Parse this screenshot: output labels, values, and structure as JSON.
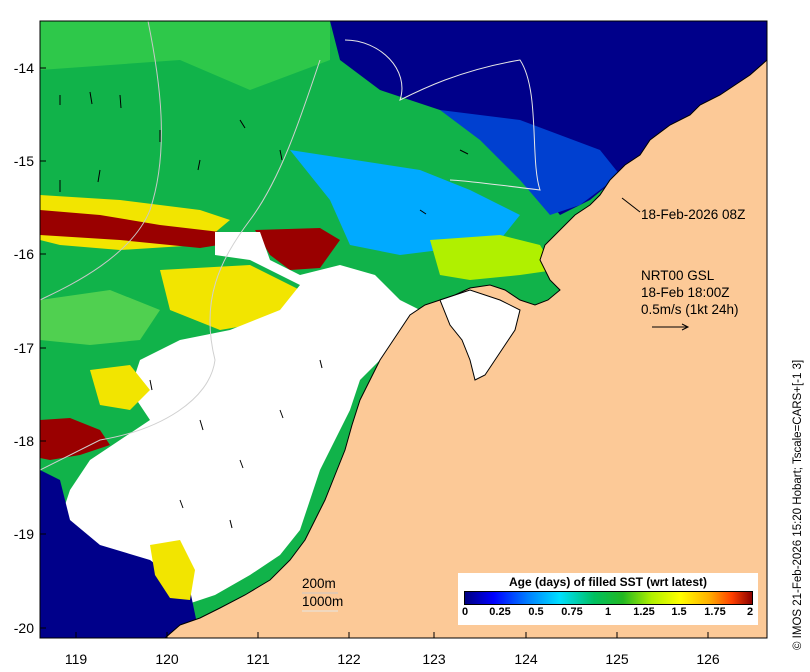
{
  "map": {
    "y_ticks": [
      "-14",
      "-15",
      "-16",
      "-17",
      "-18",
      "-19",
      "-20"
    ],
    "x_ticks": [
      "119",
      "120",
      "121",
      "122",
      "123",
      "124",
      "125",
      "126"
    ],
    "lat_range": [
      -20.1,
      -13.5
    ],
    "lon_range": [
      118.6,
      126.7
    ]
  },
  "annotations": {
    "sst_time": "18-Feb-2026 08Z",
    "current_model": "NRT00 GSL",
    "current_time": "18-Feb 18:00Z",
    "current_scale": "0.5m/s (1kt 24h)"
  },
  "contours": {
    "label_200": "200m",
    "label_1000": "1000m"
  },
  "legend": {
    "title": "Age (days) of filled SST (wrt latest)",
    "ticks": [
      "0",
      "0.25",
      "0.5",
      "0.75",
      "1",
      "1.25",
      "1.5",
      "1.75",
      "2"
    ],
    "colors": [
      "#00007f",
      "#0000ff",
      "#0080ff",
      "#00e0ff",
      "#00c060",
      "#22b822",
      "#b0f000",
      "#ffff00",
      "#ffb000",
      "#ff4000",
      "#8b0000"
    ]
  },
  "credit": "© IMOS 21-Feb-2026 15:20 Hobart; Tscale=CARS+[-1 3]",
  "colors": {
    "land": "#fcc997",
    "no_data": "#ffffff",
    "deep_blue": "#00008a",
    "blue": "#0040d0",
    "cyan": "#00aaff",
    "green": "#11b34a",
    "light_green": "#50d050",
    "yellow": "#f2e500",
    "dark_red": "#9a0000"
  }
}
